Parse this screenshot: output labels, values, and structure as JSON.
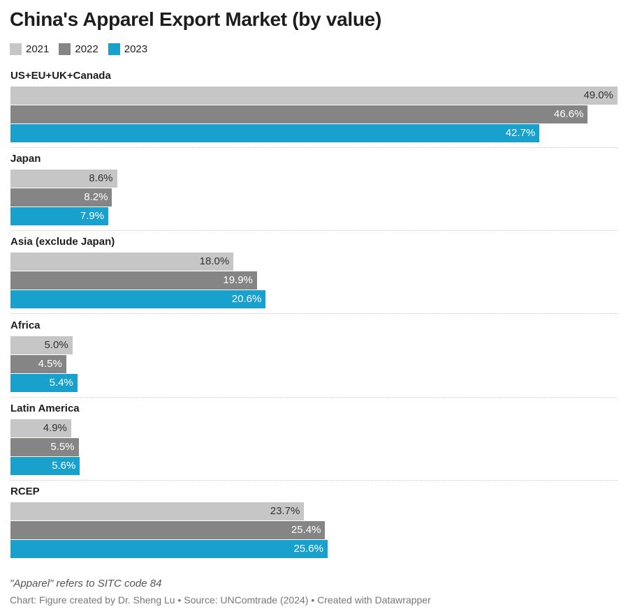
{
  "chart_data": {
    "type": "bar",
    "orientation": "horizontal",
    "title": "China's Apparel Export Market (by value)",
    "legend_position": "top-left",
    "value_suffix": "%",
    "xlim": [
      0,
      49
    ],
    "grid": false,
    "categories": [
      "US+EU+UK+Canada",
      "Japan",
      "Asia (exclude Japan)",
      "Africa",
      "Latin America",
      "RCEP"
    ],
    "series": [
      {
        "name": "2021",
        "color": "#c6c6c6",
        "label_color": "#333333",
        "values": [
          49.0,
          8.6,
          18.0,
          5.0,
          4.9,
          23.7
        ]
      },
      {
        "name": "2022",
        "color": "#858585",
        "label_color": "#ffffff",
        "values": [
          46.6,
          8.2,
          19.9,
          4.5,
          5.5,
          25.4
        ]
      },
      {
        "name": "2023",
        "color": "#18a1cd",
        "label_color": "#ffffff",
        "values": [
          42.7,
          7.9,
          20.6,
          5.4,
          5.6,
          25.6
        ]
      }
    ]
  },
  "notes": "\"Apparel\" refers to SITC code 84",
  "source": "Chart: Figure created by Dr. Sheng Lu • Source: UNComtrade (2024) • Created with Datawrapper"
}
